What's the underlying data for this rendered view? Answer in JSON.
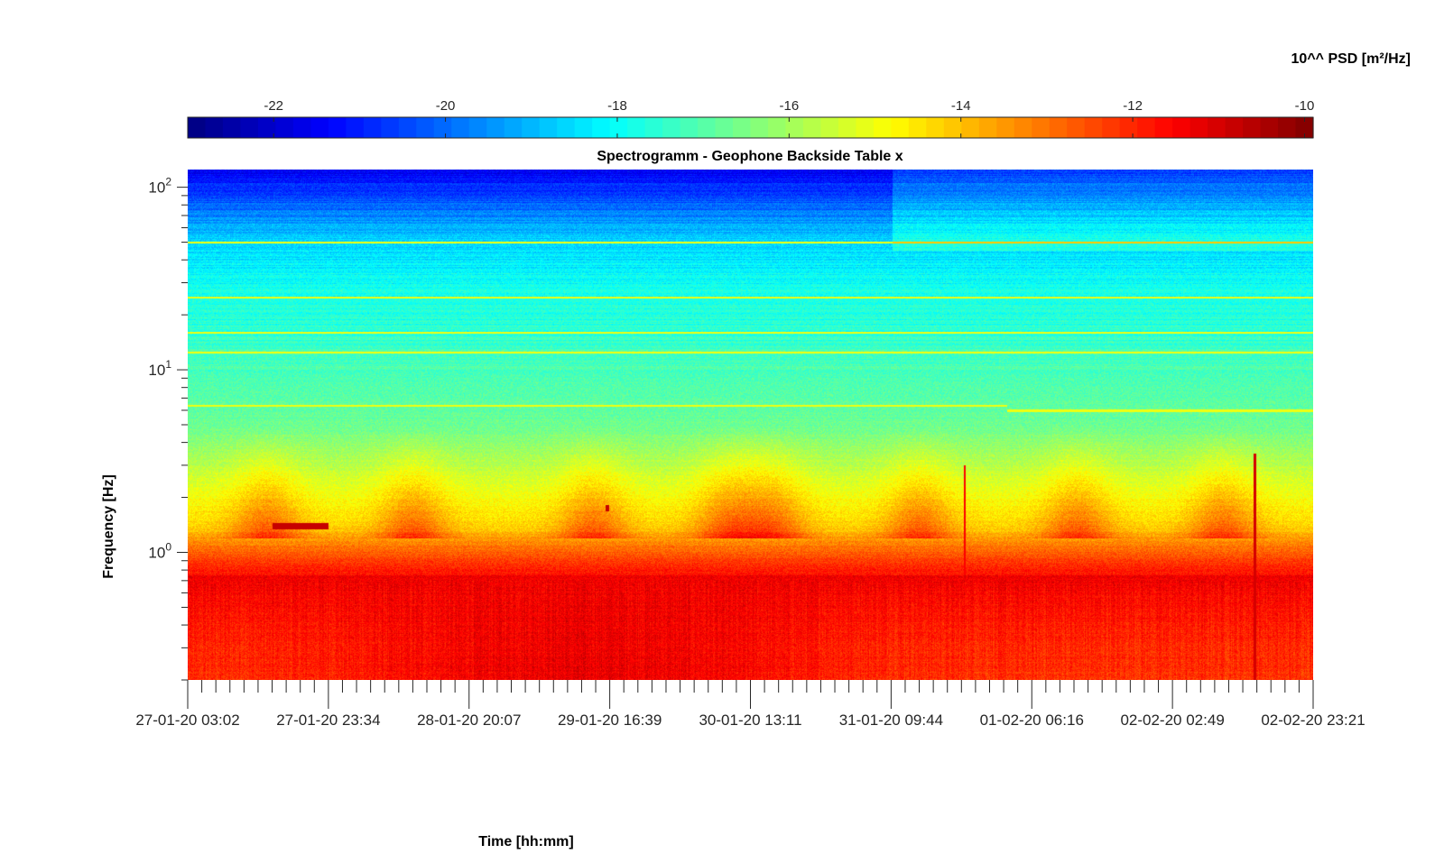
{
  "chart_data": {
    "type": "heatmap",
    "title": "Spectrogramm - Geophone Backside Table x",
    "xlabel": "Time [hh:mm]",
    "ylabel": "Frequency [Hz]",
    "x_tick_labels": [
      "27-01-20 03:02",
      "27-01-20 23:34",
      "28-01-20 20:07",
      "29-01-20 16:39",
      "30-01-20 13:11",
      "31-01-20 09:44",
      "01-02-20 06:16",
      "02-02-20 02:49",
      "02-02-20 23:21"
    ],
    "y_scale": "log",
    "y_tick_values": [
      1,
      10,
      100
    ],
    "y_tick_base": "10",
    "y_tick_exponents": [
      "0",
      "1",
      "2"
    ],
    "ylim": [
      0.2,
      125
    ],
    "colorbar": {
      "label": "10^^ PSD [m²/Hz]",
      "tick_labels": [
        "-22",
        "-20",
        "-18",
        "-16",
        "-14",
        "-12",
        "-10"
      ],
      "tick_values": [
        -22,
        -20,
        -18,
        -16,
        -14,
        -12,
        -10
      ],
      "range": [
        -23,
        -9.9
      ],
      "colormap": "jet",
      "location": "top"
    },
    "spectral_lines_hz": [
      6.4,
      12.5,
      16,
      25,
      50
    ],
    "notes_features": [
      {
        "kind": "narrowband",
        "freq_hz": 1.4,
        "x_range": [
          0.075,
          0.125
        ]
      },
      {
        "kind": "narrowband",
        "freq_hz": 1.75,
        "x_range": [
          0.371,
          0.374
        ]
      }
    ]
  }
}
